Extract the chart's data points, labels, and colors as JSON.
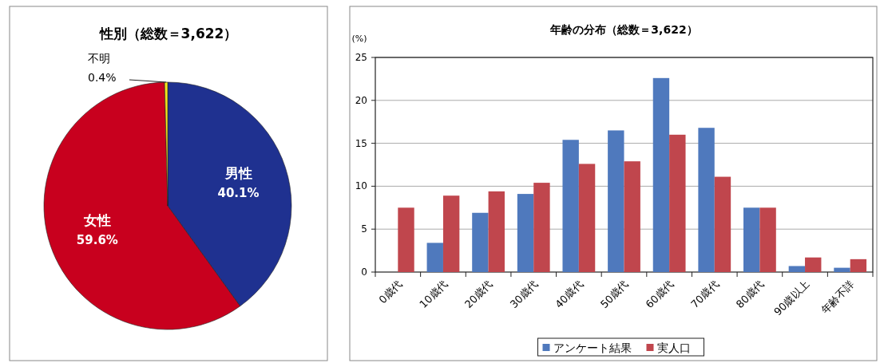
{
  "chart_data": [
    {
      "type": "pie",
      "title": "性別（総数＝3,622）",
      "categories": [
        "男性",
        "女性",
        "不明"
      ],
      "values": [
        40.1,
        59.6,
        0.4
      ],
      "colors": [
        "#1f3190",
        "#c8001e",
        "#f2e41c"
      ],
      "value_labels": [
        "40.1%",
        "59.6%",
        "0.4%"
      ]
    },
    {
      "type": "bar",
      "title": "年齢の分布（総数＝3,622）",
      "ylabel": "(%)",
      "categories": [
        "0歳代",
        "10歳代",
        "20歳代",
        "30歳代",
        "40歳代",
        "50歳代",
        "60歳代",
        "70歳代",
        "80歳代",
        "90歳以上",
        "年齢不詳"
      ],
      "series": [
        {
          "name": "アンケート結果",
          "color": "#4f79bd",
          "values": [
            0,
            3.4,
            6.9,
            9.1,
            15.4,
            16.5,
            22.6,
            16.8,
            7.5,
            0.7,
            0.5
          ]
        },
        {
          "name": "実人口",
          "color": "#c0464d",
          "values": [
            7.5,
            8.9,
            9.4,
            10.4,
            12.6,
            12.9,
            16.0,
            11.1,
            7.5,
            1.7,
            1.5
          ]
        }
      ],
      "ylim": [
        0,
        25
      ],
      "yticks": [
        0,
        5,
        10,
        15,
        20,
        25
      ],
      "grid": "y",
      "legend": "bottom"
    }
  ]
}
